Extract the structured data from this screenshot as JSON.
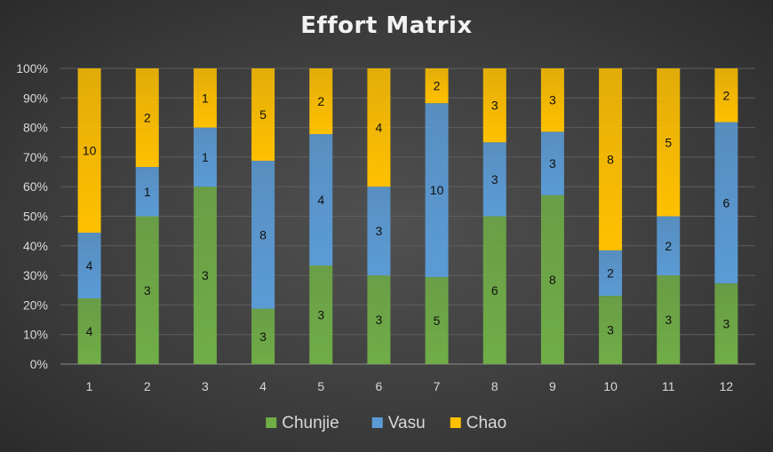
{
  "chart_data": {
    "type": "bar",
    "stacked": "percent",
    "title": "Effort Matrix",
    "xlabel": "",
    "ylabel": "",
    "categories": [
      "1",
      "2",
      "3",
      "4",
      "5",
      "6",
      "7",
      "8",
      "9",
      "10",
      "11",
      "12"
    ],
    "series": [
      {
        "name": "Chunjie",
        "color": "#70ad47",
        "values": [
          4,
          3,
          3,
          3,
          3,
          3,
          5,
          6,
          8,
          3,
          3,
          3
        ]
      },
      {
        "name": "Vasu",
        "color": "#5b9bd5",
        "values": [
          4,
          1,
          1,
          8,
          4,
          3,
          10,
          3,
          3,
          2,
          2,
          6
        ]
      },
      {
        "name": "Chao",
        "color": "#ffc000",
        "values": [
          10,
          2,
          1,
          5,
          2,
          4,
          2,
          3,
          3,
          8,
          5,
          2
        ]
      }
    ],
    "y_ticks": [
      "0%",
      "10%",
      "20%",
      "30%",
      "40%",
      "50%",
      "60%",
      "70%",
      "80%",
      "90%",
      "100%"
    ],
    "ylim": [
      0,
      1
    ],
    "grid": true,
    "legend_position": "bottom",
    "data_labels": true
  }
}
